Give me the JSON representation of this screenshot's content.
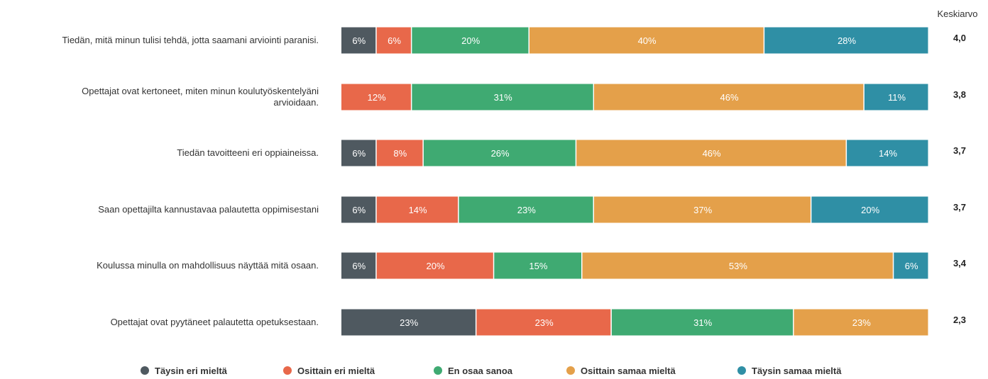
{
  "chart_data": {
    "type": "bar",
    "orientation": "horizontal",
    "stacked": true,
    "percent": true,
    "average_header": "Keskiarvo",
    "categories": [
      [
        "Tiedän, mitä minun tulisi tehdä, jotta saamani arviointi paranisi."
      ],
      [
        "Opettajat ovat kertoneet, miten minun koulutyöskentelyäni",
        "arvioidaan."
      ],
      [
        "Tiedän tavoitteeni eri oppiaineissa."
      ],
      [
        "Saan opettajilta kannustavaa palautetta oppimisestani"
      ],
      [
        "Koulussa minulla on mahdollisuus näyttää mitä osaan."
      ],
      [
        "Opettajat ovat pyytäneet palautetta opetuksestaan."
      ]
    ],
    "series": [
      {
        "name": "Täysin eri mieltä",
        "color": "#4f5960",
        "values": [
          6,
          0,
          6,
          6,
          6,
          23
        ]
      },
      {
        "name": "Osittain eri mieltä",
        "color": "#e8684a",
        "values": [
          6,
          12,
          8,
          14,
          20,
          23
        ]
      },
      {
        "name": "En osaa sanoa",
        "color": "#3faa72",
        "values": [
          20,
          31,
          26,
          23,
          15,
          31
        ]
      },
      {
        "name": "Osittain samaa mieltä",
        "color": "#e4a04a",
        "values": [
          40,
          46,
          46,
          37,
          53,
          23
        ]
      },
      {
        "name": "Täysin samaa mieltä",
        "color": "#2f8fa5",
        "values": [
          28,
          11,
          14,
          20,
          6,
          0
        ]
      }
    ],
    "averages": [
      "4,0",
      "3,8",
      "3,7",
      "3,7",
      "3,4",
      "2,3"
    ],
    "xlim": [
      0,
      100
    ],
    "legend_position": "bottom",
    "grid": false
  }
}
